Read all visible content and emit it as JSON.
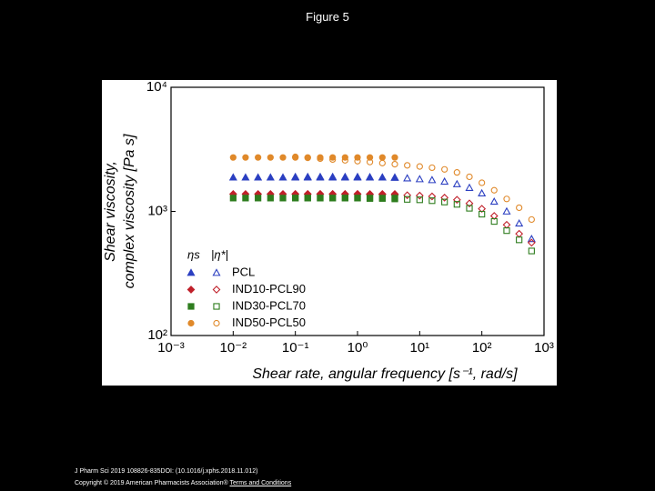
{
  "page": {
    "title": "Figure 5",
    "citation": "J Pharm Sci 2019 108826-835DOI: (10.1016/j.xphs.2018.11.012)",
    "copyright": "Copyright © 2019 American Pharmacists Association®",
    "link": "Terms and Conditions"
  },
  "chart_data": {
    "type": "scatter",
    "log_x": true,
    "log_y": true,
    "y_label_lines": [
      "Shear viscosity,",
      "complex viscosity [Pa s]"
    ],
    "x_label": "Shear rate, angular frequency [s⁻¹, rad/s]",
    "legend_headers": [
      "ηs",
      "|η*|"
    ],
    "xlim": [
      0.001,
      1000
    ],
    "xticks": [
      {
        "value": 0.001,
        "label": "10⁻³"
      },
      {
        "value": 0.01,
        "label": "10⁻²"
      },
      {
        "value": 0.1,
        "label": "10⁻¹"
      },
      {
        "value": 1,
        "label": "10⁰"
      },
      {
        "value": 10,
        "label": "10¹"
      },
      {
        "value": 100,
        "label": "10²"
      },
      {
        "value": 1000,
        "label": "10³"
      }
    ],
    "ylim": [
      100,
      10000
    ],
    "yticks": [
      {
        "value": 100,
        "label": "10²"
      },
      {
        "value": 1000,
        "label": "10³"
      },
      {
        "value": 10000,
        "label": "10⁴"
      }
    ],
    "series": [
      {
        "name": "PCL",
        "color": "#2b3fc1",
        "marker": "triangle",
        "steady": {
          "x": [
            0.01,
            0.0158,
            0.0251,
            0.0398,
            0.0631,
            0.1,
            0.158,
            0.251,
            0.398,
            0.631,
            1,
            1.58,
            2.51,
            3.98
          ],
          "values": [
            1880,
            1880,
            1880,
            1880,
            1880,
            1880,
            1880,
            1880,
            1880,
            1880,
            1880,
            1880,
            1880,
            1880
          ]
        },
        "oscillatory": {
          "x": [
            0.1,
            0.158,
            0.251,
            0.398,
            0.631,
            1,
            1.58,
            2.51,
            3.98,
            6.31,
            10,
            15.8,
            25.1,
            39.8,
            63.1,
            100,
            158,
            251,
            398,
            631
          ],
          "values": [
            1900,
            1900,
            1900,
            1900,
            1900,
            1900,
            1890,
            1880,
            1870,
            1850,
            1820,
            1790,
            1740,
            1660,
            1550,
            1400,
            1200,
            1000,
            800,
            600
          ]
        }
      },
      {
        "name": "IND10-PCL90",
        "color": "#c0202a",
        "marker": "diamond",
        "steady": {
          "x": [
            0.01,
            0.0158,
            0.0251,
            0.0398,
            0.0631,
            0.1,
            0.158,
            0.251,
            0.398,
            0.631,
            1,
            1.58,
            2.51,
            3.98
          ],
          "values": [
            1380,
            1380,
            1380,
            1380,
            1380,
            1380,
            1380,
            1380,
            1380,
            1380,
            1380,
            1380,
            1380,
            1380
          ]
        },
        "oscillatory": {
          "x": [
            0.1,
            0.158,
            0.251,
            0.398,
            0.631,
            1,
            1.58,
            2.51,
            3.98,
            6.31,
            10,
            15.8,
            25.1,
            39.8,
            63.1,
            100,
            158,
            251,
            398,
            631
          ],
          "values": [
            1380,
            1380,
            1380,
            1380,
            1380,
            1380,
            1370,
            1370,
            1360,
            1350,
            1340,
            1320,
            1290,
            1240,
            1160,
            1050,
            920,
            780,
            660,
            560
          ]
        }
      },
      {
        "name": "IND30-PCL70",
        "color": "#2e7d1e",
        "marker": "square",
        "steady": {
          "x": [
            0.01,
            0.0158,
            0.0251,
            0.0398,
            0.0631,
            0.1,
            0.158,
            0.251,
            0.398,
            0.631,
            1,
            1.58,
            2.51,
            3.98
          ],
          "values": [
            1280,
            1280,
            1280,
            1280,
            1280,
            1280,
            1280,
            1280,
            1280,
            1280,
            1280,
            1280,
            1280,
            1280
          ]
        },
        "oscillatory": {
          "x": [
            0.1,
            0.158,
            0.251,
            0.398,
            0.631,
            1,
            1.58,
            2.51,
            3.98,
            6.31,
            10,
            15.8,
            25.1,
            39.8,
            63.1,
            100,
            158,
            251,
            398,
            631
          ],
          "values": [
            1280,
            1280,
            1280,
            1280,
            1280,
            1280,
            1270,
            1270,
            1260,
            1250,
            1240,
            1220,
            1190,
            1140,
            1060,
            950,
            830,
            700,
            590,
            480
          ]
        }
      },
      {
        "name": "IND50-PCL50",
        "color": "#e0892a",
        "marker": "circle",
        "steady": {
          "x": [
            0.01,
            0.0158,
            0.0251,
            0.0398,
            0.0631,
            0.1,
            0.158,
            0.251,
            0.398,
            0.631,
            1,
            1.58,
            2.51,
            3.98
          ],
          "values": [
            2720,
            2720,
            2720,
            2720,
            2720,
            2720,
            2720,
            2720,
            2720,
            2720,
            2720,
            2720,
            2720,
            2720
          ]
        },
        "oscillatory": {
          "x": [
            0.1,
            0.158,
            0.251,
            0.398,
            0.631,
            1,
            1.58,
            2.51,
            3.98,
            6.31,
            10,
            15.8,
            25.1,
            39.8,
            63.1,
            100,
            158,
            251,
            398,
            631
          ],
          "values": [
            2750,
            2700,
            2660,
            2620,
            2580,
            2540,
            2500,
            2450,
            2400,
            2350,
            2300,
            2250,
            2180,
            2060,
            1900,
            1700,
            1480,
            1260,
            1070,
            860
          ]
        }
      }
    ]
  }
}
